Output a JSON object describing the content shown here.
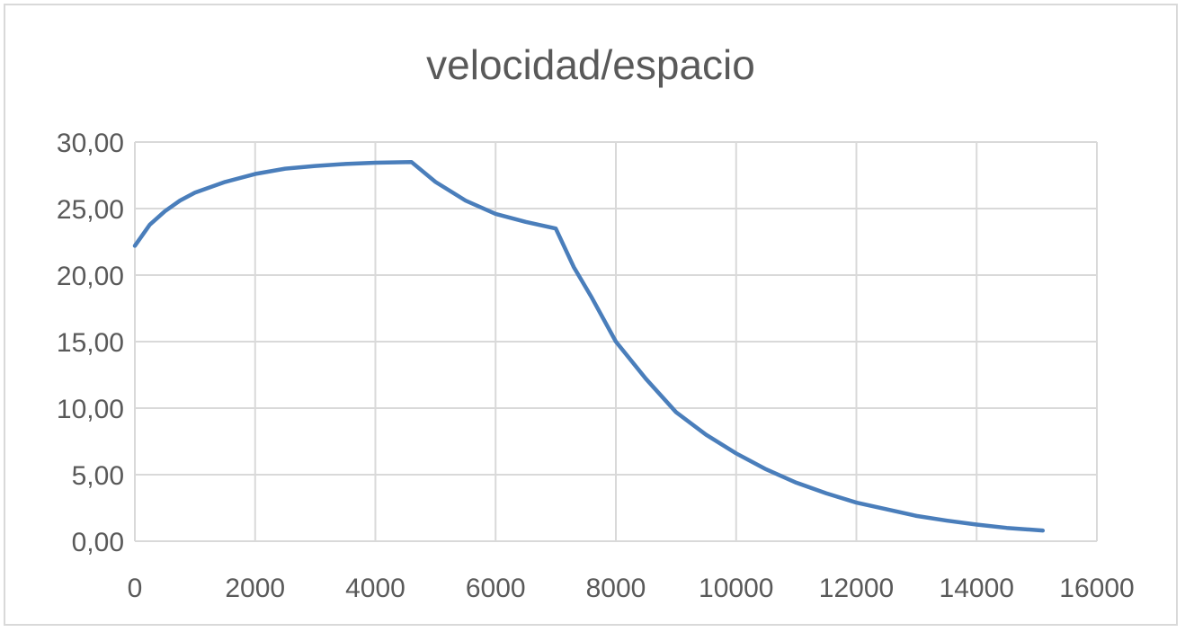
{
  "chart_data": {
    "type": "line",
    "title": "velocidad/espacio",
    "xlabel": "",
    "ylabel": "",
    "xlim": [
      0,
      16000
    ],
    "ylim": [
      0,
      30
    ],
    "x_ticks": [
      0,
      2000,
      4000,
      6000,
      8000,
      10000,
      12000,
      14000,
      16000
    ],
    "x_tick_labels": [
      "0",
      "2000",
      "4000",
      "6000",
      "8000",
      "10000",
      "12000",
      "14000",
      "16000"
    ],
    "y_ticks": [
      0,
      5,
      10,
      15,
      20,
      25,
      30
    ],
    "y_tick_labels": [
      "0,00",
      "5,00",
      "10,00",
      "15,00",
      "20,00",
      "25,00",
      "30,00"
    ],
    "grid": true,
    "legend": "none",
    "series": [
      {
        "color": "#4a7ebb",
        "x": [
          0,
          250,
          500,
          750,
          1000,
          1500,
          2000,
          2500,
          3000,
          3500,
          4000,
          4600,
          5000,
          5500,
          6000,
          6500,
          7000,
          7300,
          7600,
          8000,
          8500,
          9000,
          9500,
          10000,
          10500,
          11000,
          11500,
          12000,
          12500,
          13000,
          13500,
          14000,
          14500,
          15100
        ],
        "y": [
          22.2,
          23.8,
          24.8,
          25.6,
          26.2,
          27.0,
          27.6,
          28.0,
          28.2,
          28.35,
          28.45,
          28.5,
          27.0,
          25.6,
          24.6,
          24.0,
          23.5,
          20.6,
          18.3,
          15.0,
          12.2,
          9.7,
          8.0,
          6.6,
          5.4,
          4.4,
          3.6,
          2.9,
          2.4,
          1.9,
          1.55,
          1.25,
          1.0,
          0.8
        ]
      }
    ]
  }
}
